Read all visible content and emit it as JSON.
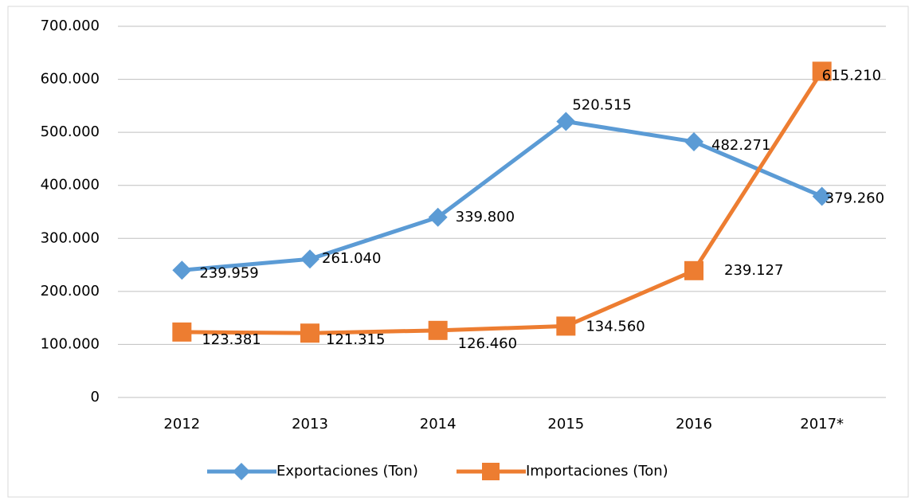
{
  "chart_data": {
    "type": "line",
    "categories": [
      "2012",
      "2013",
      "2014",
      "2015",
      "2016",
      "2017*"
    ],
    "series": [
      {
        "name": "Exportaciones (Ton)",
        "color": "#5b9bd5",
        "marker": "diamond",
        "values": [
          239959,
          261040,
          339800,
          520515,
          482271,
          379260
        ],
        "value_labels": [
          "239.959",
          "261.040",
          "339.800",
          "520.515",
          "482.271",
          "379.260"
        ]
      },
      {
        "name": "Importaciones (Ton)",
        "color": "#ed7d31",
        "marker": "square",
        "values": [
          123381,
          121315,
          126460,
          134560,
          239127,
          615210
        ],
        "value_labels": [
          "123.381",
          "121.315",
          "126.460",
          "134.560",
          "239.127",
          "615.210"
        ]
      }
    ],
    "ylim": [
      0,
      700000
    ],
    "yticks": [
      0,
      {
        "value": 100000,
        "label": "100.000"
      },
      {
        "value": 200000,
        "label": "200.000"
      },
      {
        "value": 300000,
        "label": "300.000"
      },
      {
        "value": 400000,
        "label": "400.000"
      },
      {
        "value": 500000,
        "label": "500.000"
      },
      {
        "value": 600000,
        "label": "600.000"
      },
      {
        "value": 700000,
        "label": "700.000"
      }
    ],
    "grid": true,
    "legend": "bottom"
  }
}
